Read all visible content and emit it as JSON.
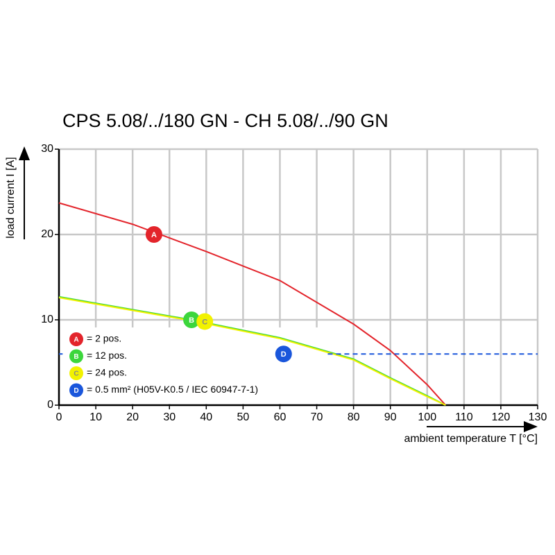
{
  "chart_data": {
    "type": "line",
    "title": "CPS 5.08/../180 GN - CH 5.08/../90 GN",
    "x_label": "ambient temperature T [°C]",
    "y_label": "load current I [A]",
    "xlim": [
      0,
      130
    ],
    "xticks": [
      0,
      10,
      20,
      30,
      40,
      50,
      60,
      70,
      80,
      90,
      100,
      110,
      120,
      130
    ],
    "ylim": [
      0,
      30
    ],
    "yticks": [
      0,
      10,
      20,
      30
    ],
    "grid": true,
    "series": [
      {
        "name": "= 2 pos.",
        "color": "#e3242b",
        "x": [
          0,
          20,
          40,
          60,
          80,
          90,
          100,
          105
        ],
        "values": [
          23.7,
          21.2,
          18.0,
          14.6,
          9.5,
          6.4,
          2.4,
          0
        ],
        "marker": {
          "label": "A",
          "x": 25.8,
          "y": 20
        }
      },
      {
        "name": "= 12 pos.",
        "color": "#3cd63c",
        "x": [
          0,
          36,
          60,
          80,
          90,
          100,
          105
        ],
        "values": [
          12.7,
          10,
          7.9,
          5.4,
          3.2,
          1.1,
          0
        ],
        "marker": {
          "label": "B",
          "x": 36,
          "y": 10
        }
      },
      {
        "name": "= 24 pos.",
        "color": "#f2f200",
        "x": [
          0,
          36,
          60,
          80,
          90,
          100,
          105
        ],
        "values": [
          12.6,
          9.9,
          7.8,
          5.3,
          3.1,
          1.0,
          0
        ],
        "marker": {
          "label": "C",
          "x": 39.6,
          "y": 9.8
        }
      },
      {
        "name": "= 0.5 mm² (H05V-K0.5 / IEC 60947-7-1)",
        "color": "#1a56db",
        "dashed": true,
        "x": [
          0,
          1,
          null,
          73,
          130
        ],
        "values": [
          6,
          6,
          null,
          6,
          6
        ],
        "marker": {
          "label": "D",
          "x": 61,
          "y": 6
        }
      }
    ]
  }
}
